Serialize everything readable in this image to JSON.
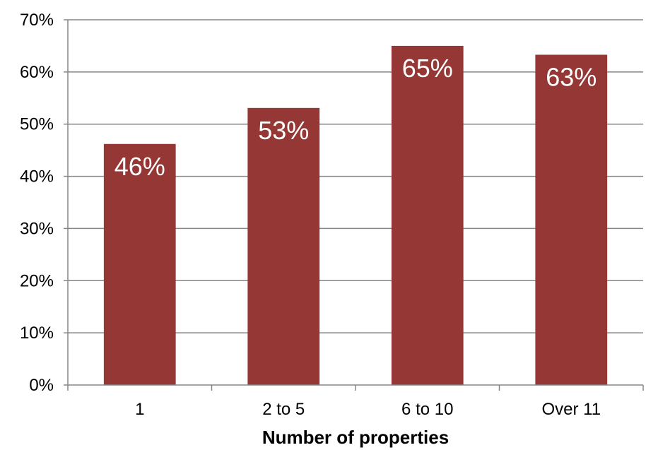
{
  "chart_data": {
    "type": "bar",
    "title": "",
    "xlabel": "Number of properties",
    "ylabel": "",
    "categories": [
      "1",
      "2 to 5",
      "6 to 10",
      "Over 11"
    ],
    "values": [
      0.462,
      0.531,
      0.65,
      0.633
    ],
    "data_labels": [
      "46%",
      "53%",
      "65%",
      "63%"
    ],
    "ylim": [
      0,
      0.7
    ],
    "yticks": [
      0,
      0.1,
      0.2,
      0.3,
      0.4,
      0.5,
      0.6,
      0.7
    ],
    "ytick_labels": [
      "0%",
      "10%",
      "20%",
      "30%",
      "40%",
      "50%",
      "60%",
      "70%"
    ],
    "grid": "horizontal",
    "legend": "none",
    "colors": {
      "bar": "#953735",
      "grid": "#868686",
      "axis": "#868686",
      "data_label": "#ffffff"
    }
  }
}
